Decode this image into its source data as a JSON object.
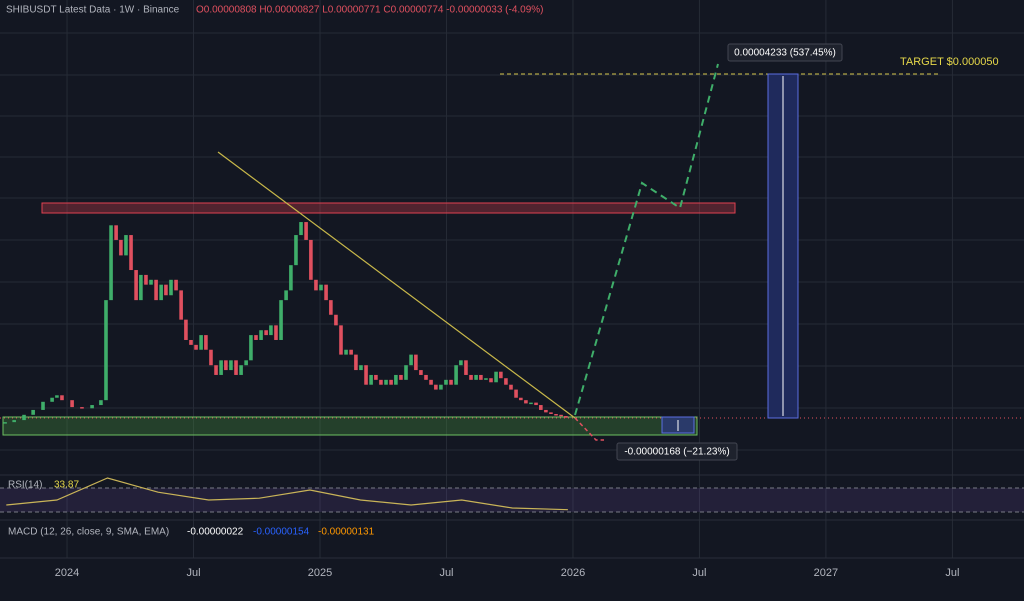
{
  "chart_data": {
    "type": "candlestick",
    "title": "SHIBUSDT Latest Data · 1W · Binance",
    "ohlc_text": "O0.00000808 H0.00000827 L0.00000771 C0.00000774 -0.00000033 (-4.09%)",
    "xlim": [
      2023.735,
      2027.783
    ],
    "xticks": [
      2024,
      {
        "value": 2024.5,
        "label": "Jul"
      },
      2025,
      {
        "value": 2025.5,
        "label": "Jul"
      },
      2026,
      {
        "value": 2026.5,
        "label": "Jul"
      },
      2027,
      {
        "value": 2027.5,
        "label": "Jul"
      }
    ],
    "ylim": [
      7e-07,
      5.91e-05
    ],
    "up_color": "#3fae6a",
    "down_color": "#e0505f",
    "series": [
      {
        "name": "SHIBUSDT",
        "x": [
          2023.755,
          2023.791,
          2023.83,
          2023.866,
          2023.905,
          2023.941,
          2023.96,
          2023.98,
          2024.02,
          2024.059,
          2024.099,
          2024.134,
          2024.154,
          2024.174,
          2024.194,
          2024.213,
          2024.233,
          2024.253,
          2024.273,
          2024.292,
          2024.312,
          2024.332,
          2024.352,
          2024.372,
          2024.391,
          2024.411,
          2024.431,
          2024.451,
          2024.47,
          2024.49,
          2024.51,
          2024.53,
          2024.549,
          2024.569,
          2024.589,
          2024.609,
          2024.628,
          2024.648,
          2024.668,
          2024.688,
          2024.708,
          2024.727,
          2024.747,
          2024.767,
          2024.787,
          2024.806,
          2024.826,
          2024.846,
          2024.866,
          2024.885,
          2024.905,
          2024.925,
          2024.945,
          2024.964,
          2024.984,
          2025.004,
          2025.024,
          2025.043,
          2025.063,
          2025.083,
          2025.103,
          2025.123,
          2025.142,
          2025.162,
          2025.182,
          2025.202,
          2025.221,
          2025.241,
          2025.261,
          2025.281,
          2025.3,
          2025.32,
          2025.34,
          2025.36,
          2025.379,
          2025.399,
          2025.419,
          2025.439,
          2025.458,
          2025.478,
          2025.498,
          2025.518,
          2025.538,
          2025.557,
          2025.577,
          2025.597,
          2025.617,
          2025.636,
          2025.656,
          2025.676,
          2025.696,
          2025.715,
          2025.735,
          2025.755,
          2025.775,
          2025.794,
          2025.814,
          2025.834,
          2025.854,
          2025.873,
          2025.893,
          2025.913,
          2025.933,
          2025.953,
          2025.972
        ],
        "values": [
          7.2e-06,
          7.45e-06,
          8.1e-06,
          8.7e-06,
          9.7e-06,
          1.02e-05,
          1.05e-05,
          9.9e-06,
          9.05e-06,
          8.9e-06,
          9.3e-06,
          9.9e-06,
          2.22e-05,
          3.14e-05,
          2.96e-05,
          2.77e-05,
          3.02e-05,
          2.59e-05,
          2.22e-05,
          2.53e-05,
          2.41e-05,
          2.47e-05,
          2.22e-05,
          2.41e-05,
          2.28e-05,
          2.47e-05,
          2.34e-05,
          1.98e-05,
          1.73e-05,
          1.67e-05,
          1.61e-05,
          1.79e-05,
          1.61e-05,
          1.42e-05,
          1.3e-05,
          1.48e-05,
          1.36e-05,
          1.48e-05,
          1.3e-05,
          1.42e-05,
          1.48e-05,
          1.79e-05,
          1.73e-05,
          1.85e-05,
          1.79e-05,
          1.91e-05,
          1.73e-05,
          2.22e-05,
          2.34e-05,
          2.65e-05,
          3.02e-05,
          3.18e-05,
          2.96e-05,
          2.47e-05,
          2.34e-05,
          2.41e-05,
          2.22e-05,
          2.04e-05,
          1.91e-05,
          1.55e-05,
          1.61e-05,
          1.55e-05,
          1.36e-05,
          1.42e-05,
          1.18e-05,
          1.3e-05,
          1.24e-05,
          1.18e-05,
          1.24e-05,
          1.18e-05,
          1.3e-05,
          1.24e-05,
          1.42e-05,
          1.55e-05,
          1.36e-05,
          1.3e-05,
          1.24e-05,
          1.18e-05,
          1.12e-05,
          1.18e-05,
          1.24e-05,
          1.18e-05,
          1.42e-05,
          1.48e-05,
          1.3e-05,
          1.24e-05,
          1.3e-05,
          1.24e-05,
          1.26e-05,
          1.21e-05,
          1.34e-05,
          1.26e-05,
          1.18e-05,
          1.12e-05,
          1.02e-05,
          9.9e-06,
          9.5e-06,
          9.6e-06,
          9.3e-06,
          8.7e-06,
          8.4e-06,
          8.2e-06,
          8.1e-06,
          7.95e-06,
          7.74e-06
        ]
      }
    ],
    "annotations": {
      "gain_label": "0.00004233 (537.45%)",
      "target_label": "TARGET $0.000050",
      "loss_label": "-0.00000168 (−21.23%)"
    },
    "rsi": {
      "label": "RSI(14)",
      "value_text": "33.87",
      "color": "#c9b458",
      "ylim": [
        20,
        95
      ],
      "x": [
        2023.76,
        2023.96,
        2024.16,
        2024.36,
        2024.56,
        2024.76,
        2024.96,
        2025.16,
        2025.36,
        2025.56,
        2025.76,
        2025.98
      ],
      "values": [
        41.7,
        50,
        86.7,
        63,
        50,
        53,
        66.7,
        50,
        41.7,
        50,
        36.7,
        33.87
      ]
    },
    "macd": {
      "label": "MACD (12, 26, close, 9, SMA, EMA)",
      "hist_text": "-0.00000022",
      "macd_text": "-0.00000154",
      "signal_text": "-0.00000131"
    }
  }
}
